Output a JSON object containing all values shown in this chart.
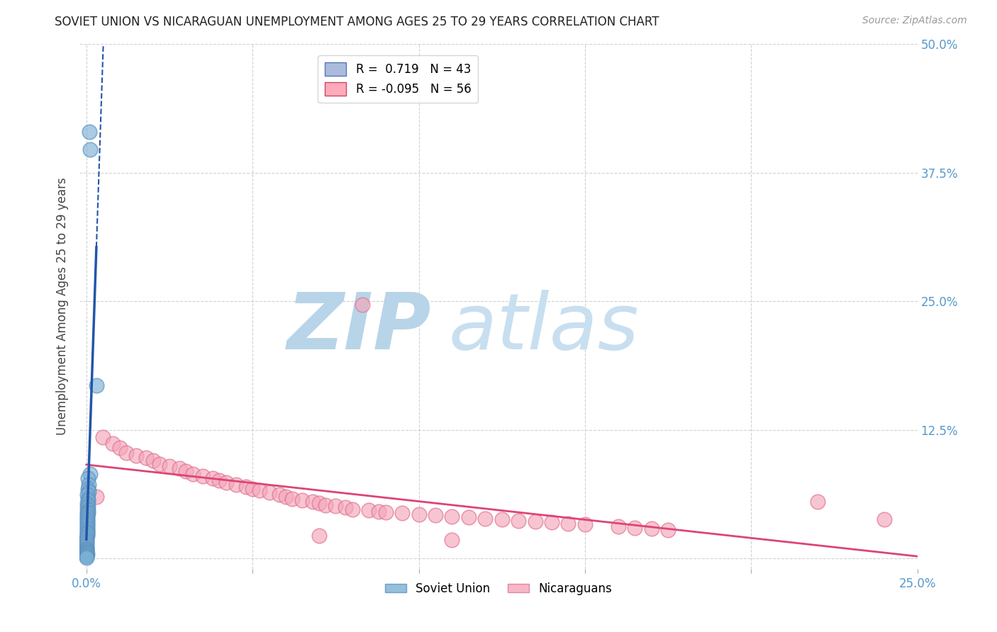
{
  "title": "SOVIET UNION VS NICARAGUAN UNEMPLOYMENT AMONG AGES 25 TO 29 YEARS CORRELATION CHART",
  "source": "Source: ZipAtlas.com",
  "ylabel": "Unemployment Among Ages 25 to 29 years",
  "xlabel": "",
  "xlim": [
    -0.002,
    0.25
  ],
  "ylim": [
    -0.01,
    0.5
  ],
  "xtick_positions": [
    0.0,
    0.05,
    0.1,
    0.15,
    0.2,
    0.25
  ],
  "xtick_labels": [
    "0.0%",
    "",
    "",
    "",
    "",
    "25.0%"
  ],
  "ytick_positions": [
    0.0,
    0.125,
    0.25,
    0.375,
    0.5
  ],
  "ytick_labels_right": [
    "",
    "12.5%",
    "25.0%",
    "37.5%",
    "50.0%"
  ],
  "soviet_R": 0.719,
  "soviet_N": 43,
  "nicaraguan_R": -0.095,
  "nicaraguan_N": 56,
  "soviet_color": "#7BAFD4",
  "nicaraguan_color": "#F4A7B9",
  "soviet_edge_color": "#5B8FBE",
  "nicaraguan_edge_color": "#E07090",
  "soviet_line_color": "#2255AA",
  "nicaraguan_line_color": "#DD4477",
  "background_color": "#FFFFFF",
  "watermark_zip_color": "#B8D4E8",
  "watermark_atlas_color": "#C8DFF0",
  "legend_label_soviet": "Soviet Union",
  "legend_label_nicaraguan": "Nicaraguans",
  "tick_label_color": "#5599CC",
  "title_color": "#222222",
  "source_color": "#999999",
  "ylabel_color": "#444444",
  "soviet_scatter": [
    [
      0.0008,
      0.415
    ],
    [
      0.001,
      0.398
    ],
    [
      0.003,
      0.168
    ],
    [
      0.0012,
      0.082
    ],
    [
      0.0005,
      0.078
    ],
    [
      0.0007,
      0.072
    ],
    [
      0.0004,
      0.068
    ],
    [
      0.0006,
      0.065
    ],
    [
      0.0003,
      0.062
    ],
    [
      0.0005,
      0.058
    ],
    [
      0.0004,
      0.056
    ],
    [
      0.0003,
      0.053
    ],
    [
      0.0004,
      0.051
    ],
    [
      0.0003,
      0.049
    ],
    [
      0.0005,
      0.047
    ],
    [
      0.0003,
      0.045
    ],
    [
      0.0004,
      0.044
    ],
    [
      0.0003,
      0.042
    ],
    [
      0.0002,
      0.04
    ],
    [
      0.0003,
      0.038
    ],
    [
      0.0002,
      0.036
    ],
    [
      0.0003,
      0.034
    ],
    [
      0.0002,
      0.032
    ],
    [
      0.0003,
      0.03
    ],
    [
      0.0002,
      0.028
    ],
    [
      0.0002,
      0.026
    ],
    [
      0.0002,
      0.024
    ],
    [
      0.0002,
      0.022
    ],
    [
      0.0001,
      0.02
    ],
    [
      0.0001,
      0.018
    ],
    [
      0.0001,
      0.016
    ],
    [
      0.0001,
      0.014
    ],
    [
      0.0001,
      0.012
    ],
    [
      0.0001,
      0.01
    ],
    [
      0.0001,
      0.009
    ],
    [
      0.0001,
      0.008
    ],
    [
      0.0001,
      0.007
    ],
    [
      0.0001,
      0.006
    ],
    [
      0.0001,
      0.005
    ],
    [
      0.0002,
      0.004
    ],
    [
      0.0001,
      0.003
    ],
    [
      0.0001,
      0.002
    ],
    [
      0.0001,
      0.001
    ]
  ],
  "nicaraguan_scatter": [
    [
      0.083,
      0.247
    ],
    [
      0.005,
      0.118
    ],
    [
      0.008,
      0.112
    ],
    [
      0.01,
      0.108
    ],
    [
      0.012,
      0.103
    ],
    [
      0.015,
      0.1
    ],
    [
      0.018,
      0.098
    ],
    [
      0.02,
      0.095
    ],
    [
      0.022,
      0.092
    ],
    [
      0.025,
      0.09
    ],
    [
      0.028,
      0.088
    ],
    [
      0.03,
      0.085
    ],
    [
      0.032,
      0.082
    ],
    [
      0.035,
      0.08
    ],
    [
      0.038,
      0.078
    ],
    [
      0.04,
      0.076
    ],
    [
      0.042,
      0.074
    ],
    [
      0.045,
      0.072
    ],
    [
      0.048,
      0.07
    ],
    [
      0.05,
      0.068
    ],
    [
      0.052,
      0.066
    ],
    [
      0.055,
      0.064
    ],
    [
      0.058,
      0.062
    ],
    [
      0.06,
      0.06
    ],
    [
      0.062,
      0.058
    ],
    [
      0.065,
      0.057
    ],
    [
      0.068,
      0.055
    ],
    [
      0.07,
      0.054
    ],
    [
      0.072,
      0.052
    ],
    [
      0.075,
      0.051
    ],
    [
      0.078,
      0.05
    ],
    [
      0.08,
      0.048
    ],
    [
      0.085,
      0.047
    ],
    [
      0.088,
      0.046
    ],
    [
      0.09,
      0.045
    ],
    [
      0.095,
      0.044
    ],
    [
      0.1,
      0.043
    ],
    [
      0.105,
      0.042
    ],
    [
      0.11,
      0.041
    ],
    [
      0.115,
      0.04
    ],
    [
      0.12,
      0.039
    ],
    [
      0.125,
      0.038
    ],
    [
      0.13,
      0.037
    ],
    [
      0.135,
      0.036
    ],
    [
      0.14,
      0.035
    ],
    [
      0.145,
      0.034
    ],
    [
      0.15,
      0.033
    ],
    [
      0.003,
      0.06
    ],
    [
      0.16,
      0.031
    ],
    [
      0.165,
      0.03
    ],
    [
      0.17,
      0.029
    ],
    [
      0.175,
      0.028
    ],
    [
      0.22,
      0.055
    ],
    [
      0.07,
      0.022
    ],
    [
      0.11,
      0.018
    ],
    [
      0.24,
      0.038
    ]
  ]
}
